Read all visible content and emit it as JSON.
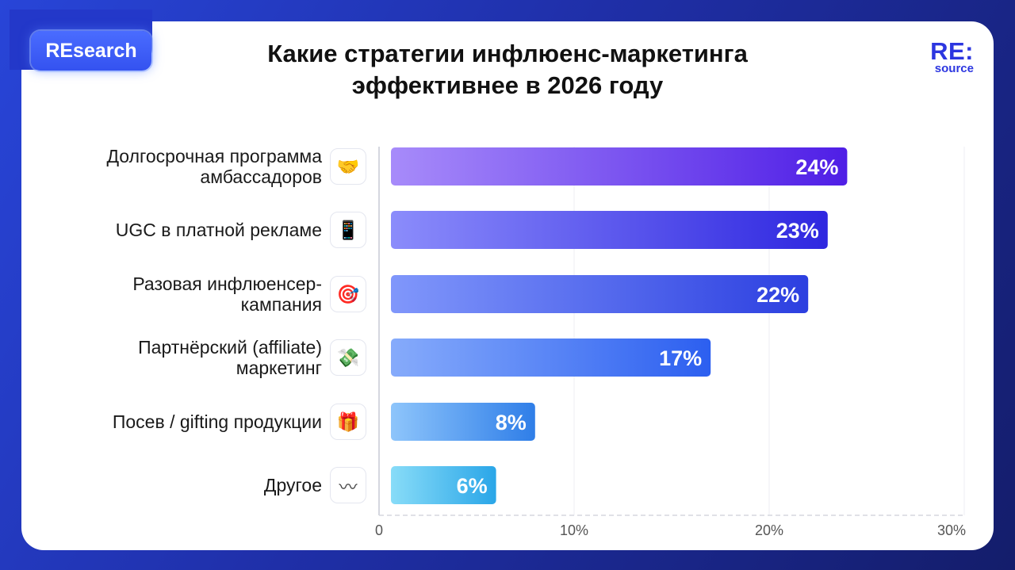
{
  "badge": {
    "label": "REsearch"
  },
  "logo": {
    "main": "RE:",
    "sub": "source"
  },
  "chart_data": {
    "type": "bar",
    "orientation": "horizontal",
    "title": "Какие стратегии инфлюенс-маркетинга эффективнее в 2026 году",
    "title_lines": [
      "Какие стратегии инфлюенс-маркетинга",
      "эффективнее в 2026 году"
    ],
    "categories": [
      "Долгосрочная программа\nамбассадоров",
      "UGC в платной рекламе",
      "Разовая инфлюенсер-\nкампания",
      "Партнёрский (affiliate)\nмаркетинг",
      "Посев / gifting продукции",
      "Другое"
    ],
    "icons": [
      "handshake-icon",
      "phone-icon",
      "target-icon",
      "money-icon",
      "gift-icon",
      "wave-icon"
    ],
    "icon_glyphs": [
      "🤝",
      "📱",
      "🎯",
      "💸",
      "🎁",
      "〰"
    ],
    "values": [
      24,
      23,
      22,
      17,
      8,
      6
    ],
    "value_labels": [
      "24%",
      "23%",
      "22%",
      "17%",
      "8%",
      "6%"
    ],
    "xlim": [
      0,
      30
    ],
    "xticks": [
      0,
      10,
      20,
      30
    ],
    "xtick_labels": [
      "0",
      "10%",
      "20%",
      "30%"
    ],
    "grid": true,
    "bar_gradients": [
      [
        "#a78bfa",
        "#4f1ee6"
      ],
      [
        "#8b8cfb",
        "#2f27e0"
      ],
      [
        "#8097fb",
        "#2c3fe0"
      ],
      [
        "#86abfb",
        "#2c5ff0"
      ],
      [
        "#8ec5fb",
        "#2f7ee8"
      ],
      [
        "#88dcf8",
        "#2aa6e8"
      ]
    ]
  }
}
